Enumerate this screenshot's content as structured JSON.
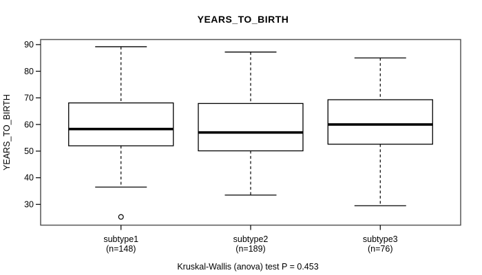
{
  "chart_data": {
    "type": "boxplot",
    "title": "YEARS_TO_BIRTH",
    "ylabel": "YEARS_TO_BIRTH",
    "caption": "Kruskal-Wallis (anova) test P = 0.453",
    "ylim": [
      22.2,
      91.9
    ],
    "yticks": [
      30,
      40,
      50,
      60,
      70,
      80,
      90
    ],
    "grid": false,
    "legend": "none",
    "colors": {
      "line": "#000000",
      "box_fill": "#ffffff",
      "frame": "#555555",
      "background": "#ffffff"
    },
    "groups": [
      {
        "label": "subtype1",
        "count_label": "(n=148)",
        "whisker_low": 36.5,
        "q1": 52.0,
        "median": 58.3,
        "q3": 68.1,
        "whisker_high": 89.2,
        "outliers": [
          25.3
        ]
      },
      {
        "label": "subtype2",
        "count_label": "(n=189)",
        "whisker_low": 33.5,
        "q1": 50.1,
        "median": 57.0,
        "q3": 67.9,
        "whisker_high": 87.2,
        "outliers": []
      },
      {
        "label": "subtype3",
        "count_label": "(n=76)",
        "whisker_low": 29.5,
        "q1": 52.6,
        "median": 60.0,
        "q3": 69.3,
        "whisker_high": 85.0,
        "outliers": []
      }
    ]
  }
}
